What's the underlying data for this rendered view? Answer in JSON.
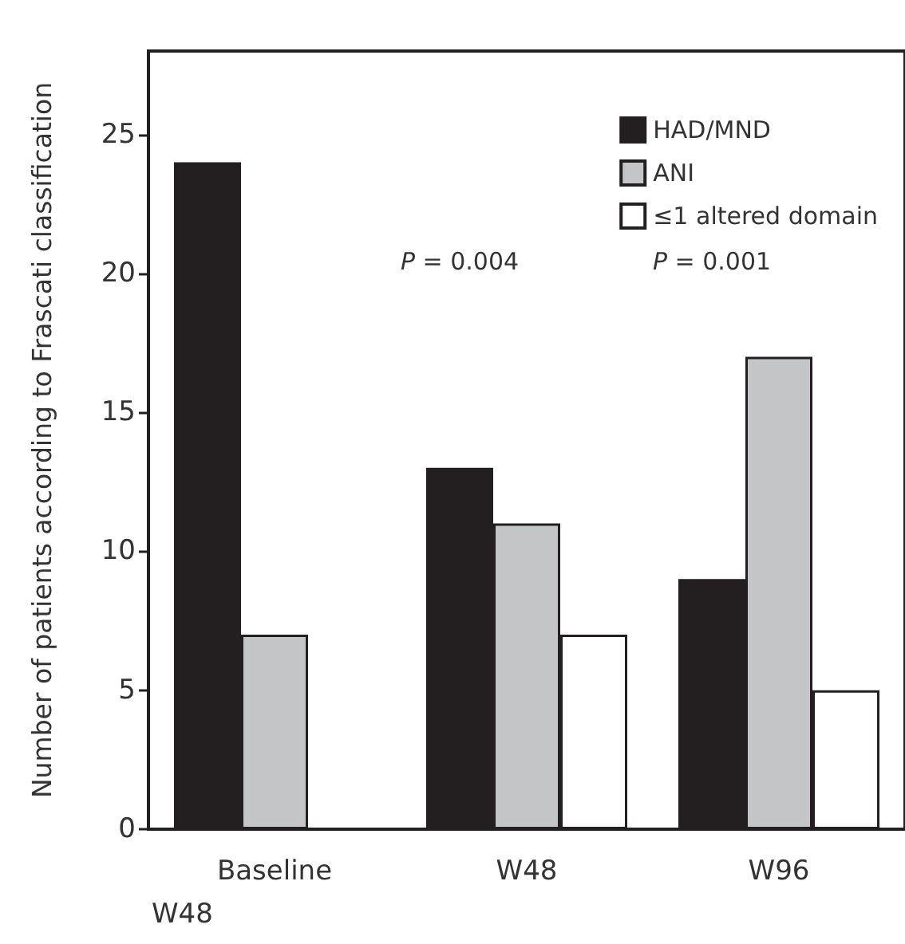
{
  "chart_data": {
    "type": "bar",
    "ylabel": "Number of patients according to Frascati classification",
    "categories": [
      "Baseline",
      "W48",
      "W96"
    ],
    "series": [
      {
        "name": "HAD/MND",
        "color": "#231f20",
        "values": [
          24,
          13,
          9
        ]
      },
      {
        "name": "ANI",
        "color": "#c4c5c7",
        "values": [
          7,
          11,
          17
        ]
      },
      {
        "name": "≤1 altered domain",
        "color": "#ffffff",
        "values": [
          null,
          7,
          5
        ]
      }
    ],
    "ylim": [
      0,
      28
    ],
    "yticks": [
      0,
      5,
      10,
      15,
      20,
      25
    ],
    "legend": "top right",
    "grid": false,
    "annotations": [
      "P = 0.004",
      "P = 0.001",
      "W48"
    ]
  }
}
